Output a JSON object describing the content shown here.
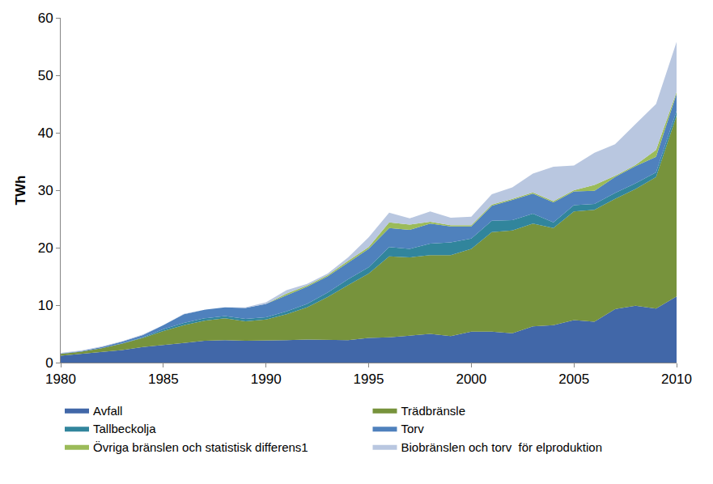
{
  "chart_data": {
    "type": "area",
    "stacked": true,
    "legend": "bottom",
    "grid": false,
    "y_label": "TWh",
    "x": [
      1980,
      1981,
      1982,
      1983,
      1984,
      1985,
      1986,
      1987,
      1988,
      1989,
      1990,
      1991,
      1992,
      1993,
      1994,
      1995,
      1996,
      1997,
      1998,
      1999,
      2000,
      2001,
      2002,
      2003,
      2004,
      2005,
      2006,
      2007,
      2008,
      2009,
      2010
    ],
    "xlim": [
      1980,
      2010
    ],
    "xticks": [
      1980,
      1985,
      1990,
      1995,
      2000,
      2005,
      2010
    ],
    "ylim": [
      0,
      60
    ],
    "yticks": [
      0,
      10,
      20,
      30,
      40,
      50,
      60
    ],
    "series": [
      {
        "name": "Avfall",
        "color": "#4167a8",
        "values": [
          1.2,
          1.5,
          1.9,
          2.2,
          2.7,
          3.0,
          3.4,
          3.8,
          3.9,
          3.8,
          3.8,
          3.9,
          4.0,
          4.0,
          3.9,
          4.3,
          4.4,
          4.7,
          5.0,
          4.6,
          5.4,
          5.4,
          5.1,
          6.3,
          6.5,
          7.4,
          7.1,
          9.3,
          9.9,
          9.4,
          11.5
        ]
      },
      {
        "name": "Trädbränsle",
        "color": "#77933c",
        "values": [
          0.3,
          0.4,
          0.6,
          1.1,
          1.6,
          2.5,
          3.1,
          3.5,
          3.8,
          3.4,
          3.7,
          4.5,
          5.6,
          7.4,
          9.6,
          11.2,
          14.1,
          13.6,
          13.7,
          14.1,
          14.4,
          17.3,
          17.9,
          17.9,
          16.9,
          18.9,
          19.5,
          19.2,
          20.3,
          22.9,
          31.5
        ]
      },
      {
        "name": "Tallbeckolja",
        "color": "#31859c",
        "values": [
          0,
          0,
          0,
          0.05,
          0.1,
          0.3,
          0.4,
          0.4,
          0.4,
          0.4,
          0.4,
          0.5,
          0.6,
          0.8,
          1.0,
          1.1,
          1.6,
          1.5,
          2.0,
          2.2,
          1.8,
          2.0,
          1.8,
          1.7,
          1.0,
          1.1,
          1.0,
          1.0,
          1.0,
          0.8,
          0.8
        ]
      },
      {
        "name": "Torv",
        "color": "#4f81bd",
        "values": [
          0.1,
          0.1,
          0.2,
          0.3,
          0.4,
          0.7,
          1.5,
          1.5,
          1.5,
          1.9,
          2.3,
          2.8,
          3.0,
          2.8,
          2.9,
          3.2,
          3.3,
          3.3,
          3.5,
          2.8,
          2.1,
          2.6,
          3.5,
          3.5,
          3.5,
          2.4,
          2.3,
          2.8,
          3.0,
          2.7,
          3.0
        ]
      },
      {
        "name": "Övriga bränslen och statistisk differens1",
        "color": "#9bbb59",
        "values": [
          0,
          0,
          0,
          0,
          0,
          0,
          0,
          0,
          0,
          0,
          0,
          0.3,
          0.2,
          0.2,
          0.3,
          0.3,
          1.0,
          0.9,
          0.3,
          0.2,
          0.2,
          0.2,
          0.2,
          0.2,
          0.2,
          0.2,
          1.0,
          0.2,
          0.2,
          1.2,
          0.3
        ]
      },
      {
        "name": "Biobränslen och torv  för elproduktion",
        "color": "#b9c7e0",
        "values": [
          0.1,
          0.1,
          0.1,
          0.1,
          0.1,
          0,
          0.1,
          0,
          0,
          0.1,
          0.3,
          0.6,
          0.3,
          0.3,
          0.6,
          1.7,
          1.7,
          1.1,
          1.8,
          1.3,
          1.5,
          1.8,
          2.0,
          3.3,
          6.0,
          4.3,
          5.6,
          5.5,
          7.1,
          8.0,
          8.7
        ]
      }
    ]
  }
}
